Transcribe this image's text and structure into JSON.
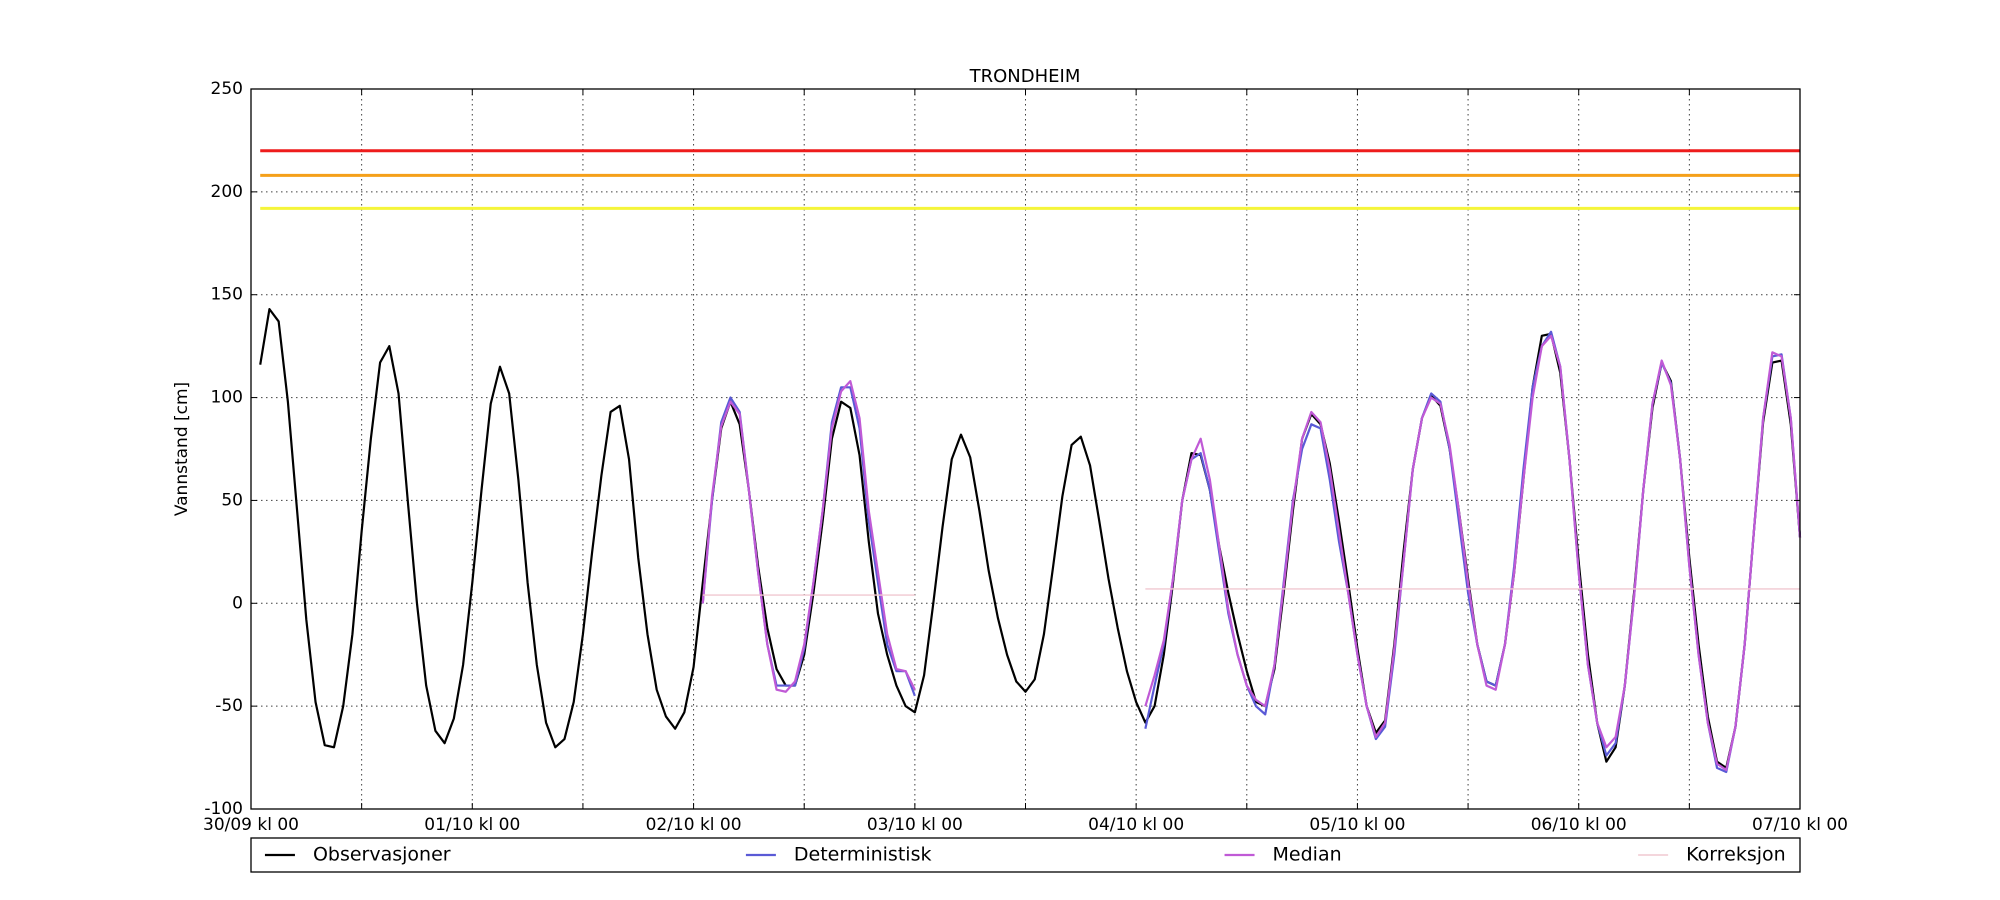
{
  "chart_data": {
    "type": "line",
    "title": "TRONDHEIM",
    "y_label": "Vannstand [cm]",
    "xlim": [
      0,
      168
    ],
    "ylim": [
      -100,
      250
    ],
    "xticks": [
      {
        "value": 0,
        "label": "30/09 kl 00"
      },
      {
        "value": 24,
        "label": "01/10 kl 00"
      },
      {
        "value": 48,
        "label": "02/10 kl 00"
      },
      {
        "value": 72,
        "label": "03/10 kl 00"
      },
      {
        "value": 96,
        "label": "04/10 kl 00"
      },
      {
        "value": 120,
        "label": "05/10 kl 00"
      },
      {
        "value": 144,
        "label": "06/10 kl 00"
      },
      {
        "value": 168,
        "label": "07/10 kl 00"
      }
    ],
    "xminor_ticks": [
      12,
      36,
      60,
      84,
      108,
      132,
      156
    ],
    "yticks": [
      -100,
      -50,
      0,
      50,
      100,
      150,
      200,
      250
    ],
    "grid": true,
    "legend": "bottom",
    "threshold_lines": [
      {
        "value": 220,
        "color": "#ee1c1c",
        "x": [
          1,
          168
        ]
      },
      {
        "value": 208,
        "color": "#f5a01a",
        "x": [
          1,
          168
        ]
      },
      {
        "value": 192,
        "color": "#f5f53a",
        "x": [
          1,
          168
        ]
      }
    ],
    "series": [
      {
        "name": "Observasjoner",
        "color": "#000000",
        "width": 2.2,
        "x": [
          1,
          2,
          3,
          4,
          5,
          6,
          7,
          8,
          9,
          10,
          11,
          12,
          13,
          14,
          15,
          16,
          17,
          18,
          19,
          20,
          21,
          22,
          23,
          24,
          25,
          26,
          27,
          28,
          29,
          30,
          31,
          32,
          33,
          34,
          35,
          36,
          37,
          38,
          39,
          40,
          41,
          42,
          43,
          44,
          45,
          46,
          47,
          48,
          49,
          50,
          51,
          52,
          53,
          54,
          55,
          56,
          57,
          58,
          59,
          60,
          61,
          62,
          63,
          64,
          65,
          66,
          67,
          68,
          69,
          70,
          71,
          72,
          73,
          74,
          75,
          76,
          77,
          78,
          79,
          80,
          81,
          82,
          83,
          84,
          85,
          86,
          87,
          88,
          89,
          90,
          91,
          92,
          93,
          94,
          95,
          96,
          97,
          98,
          99,
          100,
          101,
          102,
          103,
          104,
          105,
          106,
          107,
          108,
          109,
          110,
          111,
          112,
          113,
          114,
          115,
          116,
          117,
          118,
          119,
          120,
          121,
          122,
          123,
          124,
          125,
          126,
          127,
          128,
          129,
          130,
          131,
          132,
          133,
          134,
          135,
          136,
          137,
          138,
          139,
          140,
          141,
          142,
          143,
          144,
          145,
          146,
          147,
          148,
          149,
          150,
          151,
          152,
          153,
          154,
          155,
          156,
          157,
          158,
          159,
          160,
          161,
          162,
          163,
          164,
          165,
          166,
          167,
          168
        ],
        "values": [
          116,
          143,
          137,
          98,
          45,
          -8,
          -48,
          -69,
          -70,
          -50,
          -15,
          35,
          80,
          117,
          125,
          102,
          50,
          0,
          -40,
          -62,
          -68,
          -56,
          -30,
          10,
          55,
          97,
          115,
          102,
          60,
          10,
          -30,
          -58,
          -70,
          -66,
          -48,
          -15,
          25,
          62,
          93,
          96,
          70,
          22,
          -15,
          -42,
          -55,
          -61,
          -53,
          -31,
          10,
          50,
          85,
          98,
          87,
          55,
          18,
          -12,
          -32,
          -40,
          -40,
          -25,
          5,
          40,
          80,
          98,
          95,
          72,
          30,
          -5,
          -25,
          -40,
          -50,
          -53,
          -35,
          0,
          37,
          70,
          82,
          71,
          45,
          16,
          -7,
          -25,
          -38,
          -43,
          -37,
          -15,
          18,
          52,
          77,
          81,
          67,
          40,
          12,
          -12,
          -33,
          -48,
          -58,
          -50,
          -25,
          10,
          50,
          73,
          72,
          55,
          28,
          5,
          -15,
          -33,
          -48,
          -50,
          -32,
          5,
          45,
          80,
          92,
          87,
          68,
          40,
          10,
          -22,
          -50,
          -63,
          -57,
          -20,
          25,
          65,
          90,
          101,
          96,
          75,
          45,
          12,
          -20,
          -38,
          -40,
          -20,
          15,
          60,
          105,
          130,
          131,
          112,
          70,
          20,
          -25,
          -58,
          -77,
          -70,
          -40,
          5,
          55,
          95,
          117,
          108,
          70,
          22,
          -20,
          -55,
          -77,
          -80,
          -60,
          -20,
          35,
          88,
          117,
          118,
          87,
          32
        ]
      },
      {
        "name": "Deterministisk",
        "color": "#5a5ad6",
        "width": 2.2,
        "x": [
          49,
          50,
          51,
          52,
          53,
          54,
          55,
          56,
          57,
          58,
          59,
          60,
          61,
          62,
          63,
          64,
          65,
          66,
          67,
          68,
          69,
          70,
          71,
          72,
          73,
          97,
          98,
          99,
          100,
          101,
          102,
          103,
          104,
          105,
          106,
          107,
          108,
          109,
          110,
          111,
          112,
          113,
          114,
          115,
          116,
          117,
          118,
          119,
          120,
          121,
          122,
          123,
          124,
          125,
          126,
          127,
          128,
          129,
          130,
          131,
          132,
          133,
          134,
          135,
          136,
          137,
          138,
          139,
          140,
          141,
          142,
          143,
          144,
          145,
          146,
          147,
          148,
          149,
          150,
          151,
          152,
          153,
          154,
          155,
          156,
          157,
          158,
          159,
          160,
          161,
          162,
          163,
          164,
          165,
          166,
          167,
          168
        ],
        "values": [
          0,
          50,
          88,
          100,
          93,
          55,
          15,
          -20,
          -40,
          -40,
          -40,
          -22,
          10,
          45,
          88,
          105,
          105,
          85,
          40,
          10,
          -20,
          -33,
          -33,
          -45,
          null,
          -61,
          -40,
          -20,
          12,
          50,
          70,
          73,
          55,
          25,
          -5,
          -25,
          -40,
          -50,
          -54,
          -30,
          10,
          50,
          75,
          87,
          85,
          60,
          30,
          5,
          -25,
          -50,
          -66,
          -60,
          -25,
          20,
          65,
          90,
          102,
          98,
          75,
          40,
          5,
          -20,
          -38,
          -40,
          -20,
          18,
          65,
          105,
          125,
          132,
          115,
          70,
          15,
          -30,
          -58,
          -74,
          -68,
          -40,
          3,
          55,
          97,
          117,
          107,
          70,
          18,
          -25,
          -58,
          -80,
          -82,
          -60,
          -20,
          35,
          90,
          120,
          121,
          90,
          32
        ]
      },
      {
        "name": "Median",
        "color": "#c05ad6",
        "width": 2.2,
        "x": [
          49,
          50,
          51,
          52,
          53,
          54,
          55,
          56,
          57,
          58,
          59,
          60,
          61,
          62,
          63,
          64,
          65,
          66,
          67,
          68,
          69,
          70,
          71,
          72,
          73,
          97,
          98,
          99,
          100,
          101,
          102,
          103,
          104,
          105,
          106,
          107,
          108,
          109,
          110,
          111,
          112,
          113,
          114,
          115,
          116,
          117,
          118,
          119,
          120,
          121,
          122,
          123,
          124,
          125,
          126,
          127,
          128,
          129,
          130,
          131,
          132,
          133,
          134,
          135,
          136,
          137,
          138,
          139,
          140,
          141,
          142,
          143,
          144,
          145,
          146,
          147,
          148,
          149,
          150,
          151,
          152,
          153,
          154,
          155,
          156,
          157,
          158,
          159,
          160,
          161,
          162,
          163,
          164,
          165,
          166,
          167,
          168
        ],
        "values": [
          0,
          52,
          86,
          98,
          92,
          55,
          15,
          -20,
          -42,
          -43,
          -38,
          -20,
          10,
          45,
          85,
          103,
          108,
          90,
          45,
          15,
          -15,
          -32,
          -33,
          -42,
          null,
          -50,
          -35,
          -18,
          12,
          50,
          70,
          80,
          60,
          28,
          -3,
          -25,
          -40,
          -47,
          -50,
          -30,
          8,
          48,
          80,
          93,
          88,
          65,
          35,
          5,
          -25,
          -50,
          -65,
          -58,
          -22,
          20,
          65,
          90,
          100,
          97,
          77,
          45,
          10,
          -20,
          -40,
          -42,
          -20,
          15,
          60,
          100,
          125,
          130,
          115,
          70,
          15,
          -30,
          -58,
          -70,
          -65,
          -40,
          3,
          55,
          97,
          118,
          106,
          70,
          18,
          -25,
          -58,
          -78,
          -81,
          -60,
          -20,
          35,
          90,
          122,
          120,
          90,
          32
        ]
      },
      {
        "name": "Korreksjon",
        "color": "#f0c8d0",
        "width": 1.4,
        "x": [
          49,
          72,
          73,
          97,
          168
        ],
        "values": [
          4,
          4,
          null,
          7,
          7
        ]
      }
    ]
  }
}
